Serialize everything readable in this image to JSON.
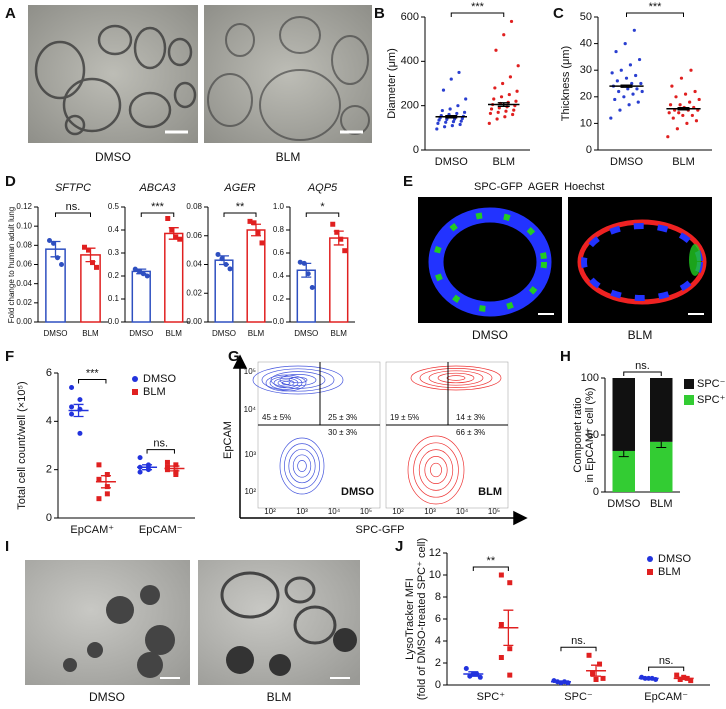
{
  "panel_a": {
    "label": "A",
    "captions": [
      "DMSO",
      "BLM"
    ]
  },
  "panel_d": {
    "label": "D",
    "ylabel": "Fold change to human adult lung"
  },
  "panel_e": {
    "label": "E",
    "legend": [
      {
        "text": "SPC-GFP",
        "color": "#22cc22"
      },
      {
        "text": "AGER",
        "color": "#ee2222"
      },
      {
        "text": "Hoechst",
        "color": "#2233ff"
      }
    ],
    "captions": [
      "DMSO",
      "BLM"
    ]
  },
  "panel_g": {
    "label": "G",
    "ylabel": "EpCAM",
    "xlabel": "SPC-GFP",
    "yticks": [
      "10⁵",
      "10⁴",
      "10³",
      "10²"
    ],
    "xticks": [
      "10²",
      "10³",
      "10⁴",
      "10⁵"
    ],
    "plots": [
      {
        "name": "DMSO",
        "color": "#4455dd",
        "quadrants": [
          "45 ± 5%",
          "25 ± 3%",
          "30 ± 3%"
        ]
      },
      {
        "name": "BLM",
        "color": "#ee3333",
        "quadrants": [
          "19 ± 5%",
          "14 ± 3%",
          "66 ± 3%"
        ]
      }
    ]
  },
  "panel_i": {
    "label": "I",
    "captions": [
      "DMSO",
      "BLM"
    ]
  },
  "chart_data": [
    {
      "type": "dot",
      "label": "B",
      "ylabel": "Diameter (μm)",
      "categories": [
        "DMSO",
        "BLM"
      ],
      "colors": [
        "#2a3fd0",
        "#e02020"
      ],
      "ylim": [
        0,
        600
      ],
      "yticks": [
        0,
        200,
        400,
        600
      ],
      "points": [
        [
          95,
          105,
          110,
          115,
          120,
          125,
          128,
          130,
          135,
          138,
          140,
          142,
          145,
          148,
          150,
          152,
          155,
          160,
          165,
          170,
          178,
          185,
          200,
          230,
          270,
          320,
          350
        ],
        [
          120,
          140,
          150,
          160,
          165,
          170,
          175,
          180,
          185,
          190,
          195,
          200,
          205,
          210,
          215,
          220,
          230,
          240,
          250,
          265,
          280,
          300,
          330,
          380,
          450,
          520,
          580
        ]
      ],
      "means": [
        150,
        205
      ],
      "errors": [
        5,
        8
      ],
      "significance": [
        "***"
      ]
    },
    {
      "type": "dot",
      "label": "C",
      "ylabel": "Thickness (μm)",
      "categories": [
        "DMSO",
        "BLM"
      ],
      "colors": [
        "#2a3fd0",
        "#e02020"
      ],
      "ylim": [
        0,
        50
      ],
      "yticks": [
        0,
        10,
        20,
        30,
        40,
        50
      ],
      "points": [
        [
          12,
          15,
          17,
          18,
          19,
          20,
          21,
          22,
          22,
          23,
          23,
          24,
          24,
          25,
          25,
          26,
          27,
          28,
          29,
          30,
          32,
          34,
          37,
          40,
          45
        ],
        [
          5,
          8,
          10,
          11,
          12,
          13,
          13,
          14,
          14,
          15,
          15,
          15,
          16,
          16,
          17,
          17,
          18,
          19,
          20,
          21,
          22,
          24,
          27,
          30
        ]
      ],
      "means": [
        24,
        15.5
      ],
      "errors": [
        0.4,
        0.4
      ],
      "significance": [
        "***"
      ]
    },
    {
      "type": "bar",
      "title": "SFTPC",
      "categories": [
        "DMSO",
        "BLM"
      ],
      "colors": [
        "#2e4fc0",
        "#e02020"
      ],
      "markers": [
        "circle",
        "square"
      ],
      "ylim": [
        0,
        0.12
      ],
      "yticks": [
        {
          "value": 0,
          "label": "0.00"
        },
        0.02,
        0.04,
        0.06,
        0.08,
        {
          "value": 0.1,
          "label": "0.10"
        },
        0.12
      ],
      "values": [
        0.076,
        0.07
      ],
      "errors": [
        0.008,
        0.007
      ],
      "points": [
        [
          0.085,
          0.082,
          0.067,
          0.06
        ],
        [
          0.078,
          0.075,
          0.062,
          0.057
        ]
      ],
      "significance": [
        "ns."
      ]
    },
    {
      "type": "bar",
      "title": "ABCA3",
      "categories": [
        "DMSO",
        "BLM"
      ],
      "colors": [
        "#2e4fc0",
        "#e02020"
      ],
      "markers": [
        "circle",
        "square"
      ],
      "ylim": [
        0,
        0.5
      ],
      "yticks": [
        {
          "value": 0,
          "label": "0.0"
        },
        0.1,
        0.2,
        0.3,
        0.4,
        0.5
      ],
      "values": [
        0.22,
        0.385
      ],
      "errors": [
        0.01,
        0.025
      ],
      "points": [
        [
          0.23,
          0.22,
          0.21,
          0.2
        ],
        [
          0.45,
          0.4,
          0.37,
          0.36
        ]
      ],
      "significance": [
        "***"
      ]
    },
    {
      "type": "bar",
      "title": "AGER",
      "categories": [
        "DMSO",
        "BLM"
      ],
      "colors": [
        "#2e4fc0",
        "#e02020"
      ],
      "markers": [
        "circle",
        "square"
      ],
      "ylim": [
        0,
        0.08
      ],
      "yticks": [
        {
          "value": 0,
          "label": "0.00"
        },
        {
          "value": 0.02,
          "label": "0.02"
        },
        {
          "value": 0.04,
          "label": "0.04"
        },
        {
          "value": 0.06,
          "label": "0.06"
        },
        {
          "value": 0.08,
          "label": "0.08"
        }
      ],
      "values": [
        0.043,
        0.064
      ],
      "errors": [
        0.003,
        0.004
      ],
      "points": [
        [
          0.047,
          0.044,
          0.04,
          0.037
        ],
        [
          0.07,
          0.069,
          0.062,
          0.055
        ]
      ],
      "significance": [
        "**"
      ]
    },
    {
      "type": "bar",
      "title": "AQP5",
      "categories": [
        "DMSO",
        "BLM"
      ],
      "colors": [
        "#2e4fc0",
        "#e02020"
      ],
      "markers": [
        "circle",
        "square"
      ],
      "ylim": [
        0,
        1
      ],
      "yticks": [
        {
          "value": 0,
          "label": "0.0"
        },
        0.2,
        0.4,
        0.6,
        0.8,
        {
          "value": 1,
          "label": "1.0"
        }
      ],
      "values": [
        0.45,
        0.73
      ],
      "errors": [
        0.06,
        0.06
      ],
      "points": [
        [
          0.52,
          0.51,
          0.42,
          0.3
        ],
        [
          0.85,
          0.78,
          0.72,
          0.62
        ]
      ],
      "significance": [
        "*"
      ]
    },
    {
      "type": "dot",
      "label": "F",
      "ylabel": "Total cell count/well (×10⁵)",
      "categories": [
        "EpCAM⁺",
        "EpCAM⁻"
      ],
      "ylim": [
        0,
        6
      ],
      "yticks": [
        0,
        2,
        4,
        6
      ],
      "legend": "upper right",
      "series": [
        {
          "name": "DMSO",
          "color": "#2233dd",
          "marker": "circle",
          "points": [
            [
              5.4,
              4.9,
              4.6,
              4.5,
              4.3,
              3.5
            ],
            [
              2.5,
              2.2,
              2.1,
              2.0,
              1.9,
              2.1
            ]
          ],
          "means": [
            4.45,
            2.1
          ],
          "errors": [
            0.25,
            0.1
          ]
        },
        {
          "name": "BLM",
          "color": "#e02020",
          "marker": "square",
          "points": [
            [
              2.2,
              1.8,
              1.6,
              1.3,
              0.8,
              1.0
            ],
            [
              2.3,
              2.2,
              2.1,
              1.9,
              2.0,
              1.8
            ]
          ],
          "means": [
            1.5,
            2.05
          ],
          "errors": [
            0.25,
            0.1
          ]
        }
      ],
      "significance": [
        "***",
        "ns."
      ]
    },
    {
      "type": "stacked_bar",
      "label": "H",
      "ylabel": [
        "Componet ratio",
        "in EpCAM⁺ cell (%)"
      ],
      "categories": [
        "DMSO",
        "BLM"
      ],
      "ylim": [
        0,
        100
      ],
      "yticks": [
        0,
        50,
        100
      ],
      "series": [
        {
          "name": "SPC⁺",
          "color": "#33cc33",
          "values": [
            36,
            44
          ],
          "errors": [
            5,
            5
          ]
        },
        {
          "name": "SPC⁻",
          "color": "#111111",
          "values": [
            64,
            56
          ]
        }
      ],
      "significance": [
        "ns."
      ]
    },
    {
      "type": "dot",
      "label": "J",
      "ylabel": [
        "LysoTracker MFI",
        "(fold of DMSO-treated SPC⁺ cell)"
      ],
      "categories": [
        "SPC⁺",
        "SPC⁻",
        "EpCAM⁻"
      ],
      "ylim": [
        0,
        12
      ],
      "yticks": [
        0,
        2,
        4,
        6,
        8,
        10,
        12
      ],
      "legend": "upper right",
      "series": [
        {
          "name": "DMSO",
          "color": "#2233dd",
          "marker": "circle",
          "points": [
            [
              1.5,
              1.0,
              0.8,
              0.7,
              1.0
            ],
            [
              0.4,
              0.3,
              0.3,
              0.2,
              0.2
            ],
            [
              0.7,
              0.6,
              0.6,
              0.5,
              0.6
            ]
          ],
          "means": [
            1.0,
            0.3,
            0.6
          ],
          "errors": [
            0.2,
            0.05,
            0.03
          ]
        },
        {
          "name": "BLM",
          "color": "#e02020",
          "marker": "square",
          "points": [
            [
              10.0,
              9.3,
              5.5,
              3.3,
              2.5,
              0.9
            ],
            [
              2.7,
              1.9,
              1.0,
              0.6,
              0.5
            ],
            [
              0.9,
              0.6,
              0.5,
              0.4,
              0.7
            ]
          ],
          "means": [
            5.2,
            1.3,
            0.6
          ],
          "errors": [
            1.6,
            0.5,
            0.1
          ]
        }
      ],
      "significance": [
        "**",
        "ns.",
        "ns."
      ]
    }
  ]
}
